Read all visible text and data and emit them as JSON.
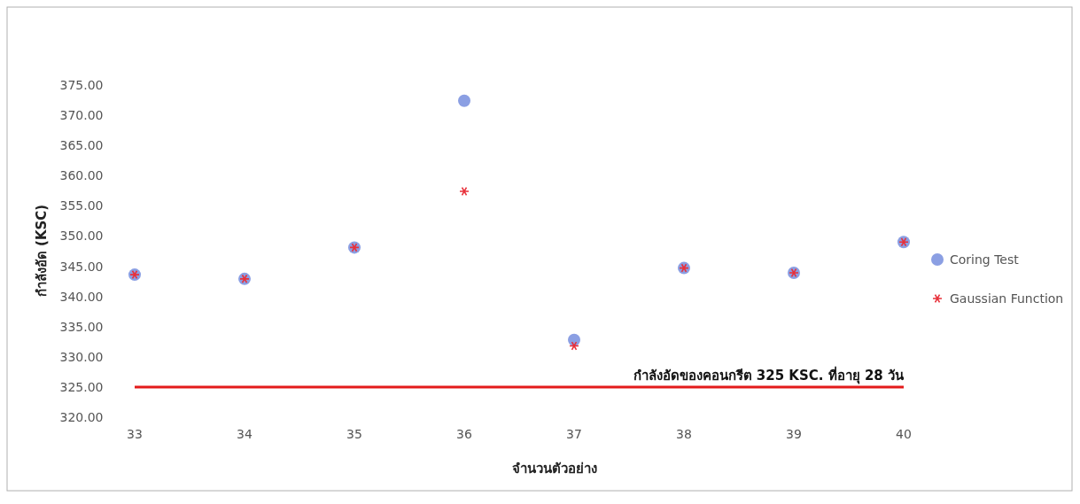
{
  "chart_data": {
    "type": "scatter",
    "xlabel": "จำนวนตัวอย่าง",
    "ylabel": "กำลังอัด (KSC)",
    "categories": [
      "33",
      "34",
      "35",
      "36",
      "37",
      "38",
      "39",
      "40"
    ],
    "ylim": [
      320,
      375
    ],
    "yticks": [
      {
        "value": 320,
        "label": "320.00"
      },
      {
        "value": 325,
        "label": "325.00"
      },
      {
        "value": 330,
        "label": "330.00"
      },
      {
        "value": 335,
        "label": "335.00"
      },
      {
        "value": 340,
        "label": "340.00"
      },
      {
        "value": 345,
        "label": "345.00"
      },
      {
        "value": 350,
        "label": "350.00"
      },
      {
        "value": 355,
        "label": "355.00"
      },
      {
        "value": 360,
        "label": "360.00"
      },
      {
        "value": 365,
        "label": "365.00"
      },
      {
        "value": 370,
        "label": "370.00"
      },
      {
        "value": 375,
        "label": "375.00"
      }
    ],
    "series": [
      {
        "name": "Coring Test",
        "color": "#8b9fe3",
        "marker": "circle",
        "values": [
          343.6,
          342.9,
          348.1,
          372.4,
          332.8,
          344.7,
          343.9,
          349.0
        ]
      },
      {
        "name": "Gaussian Function",
        "color": "#e8303a",
        "marker": "cross",
        "values": [
          343.6,
          342.9,
          348.1,
          357.4,
          331.8,
          344.7,
          343.9,
          349.0
        ]
      }
    ],
    "ref_lines": [
      {
        "axis": "y",
        "value": 325,
        "label": "กำลังอัดของคอนกรีต 325 KSC. ที่อายุ 28 วัน",
        "color": "#e31b1b"
      }
    ],
    "grid": false,
    "legend": "right"
  }
}
